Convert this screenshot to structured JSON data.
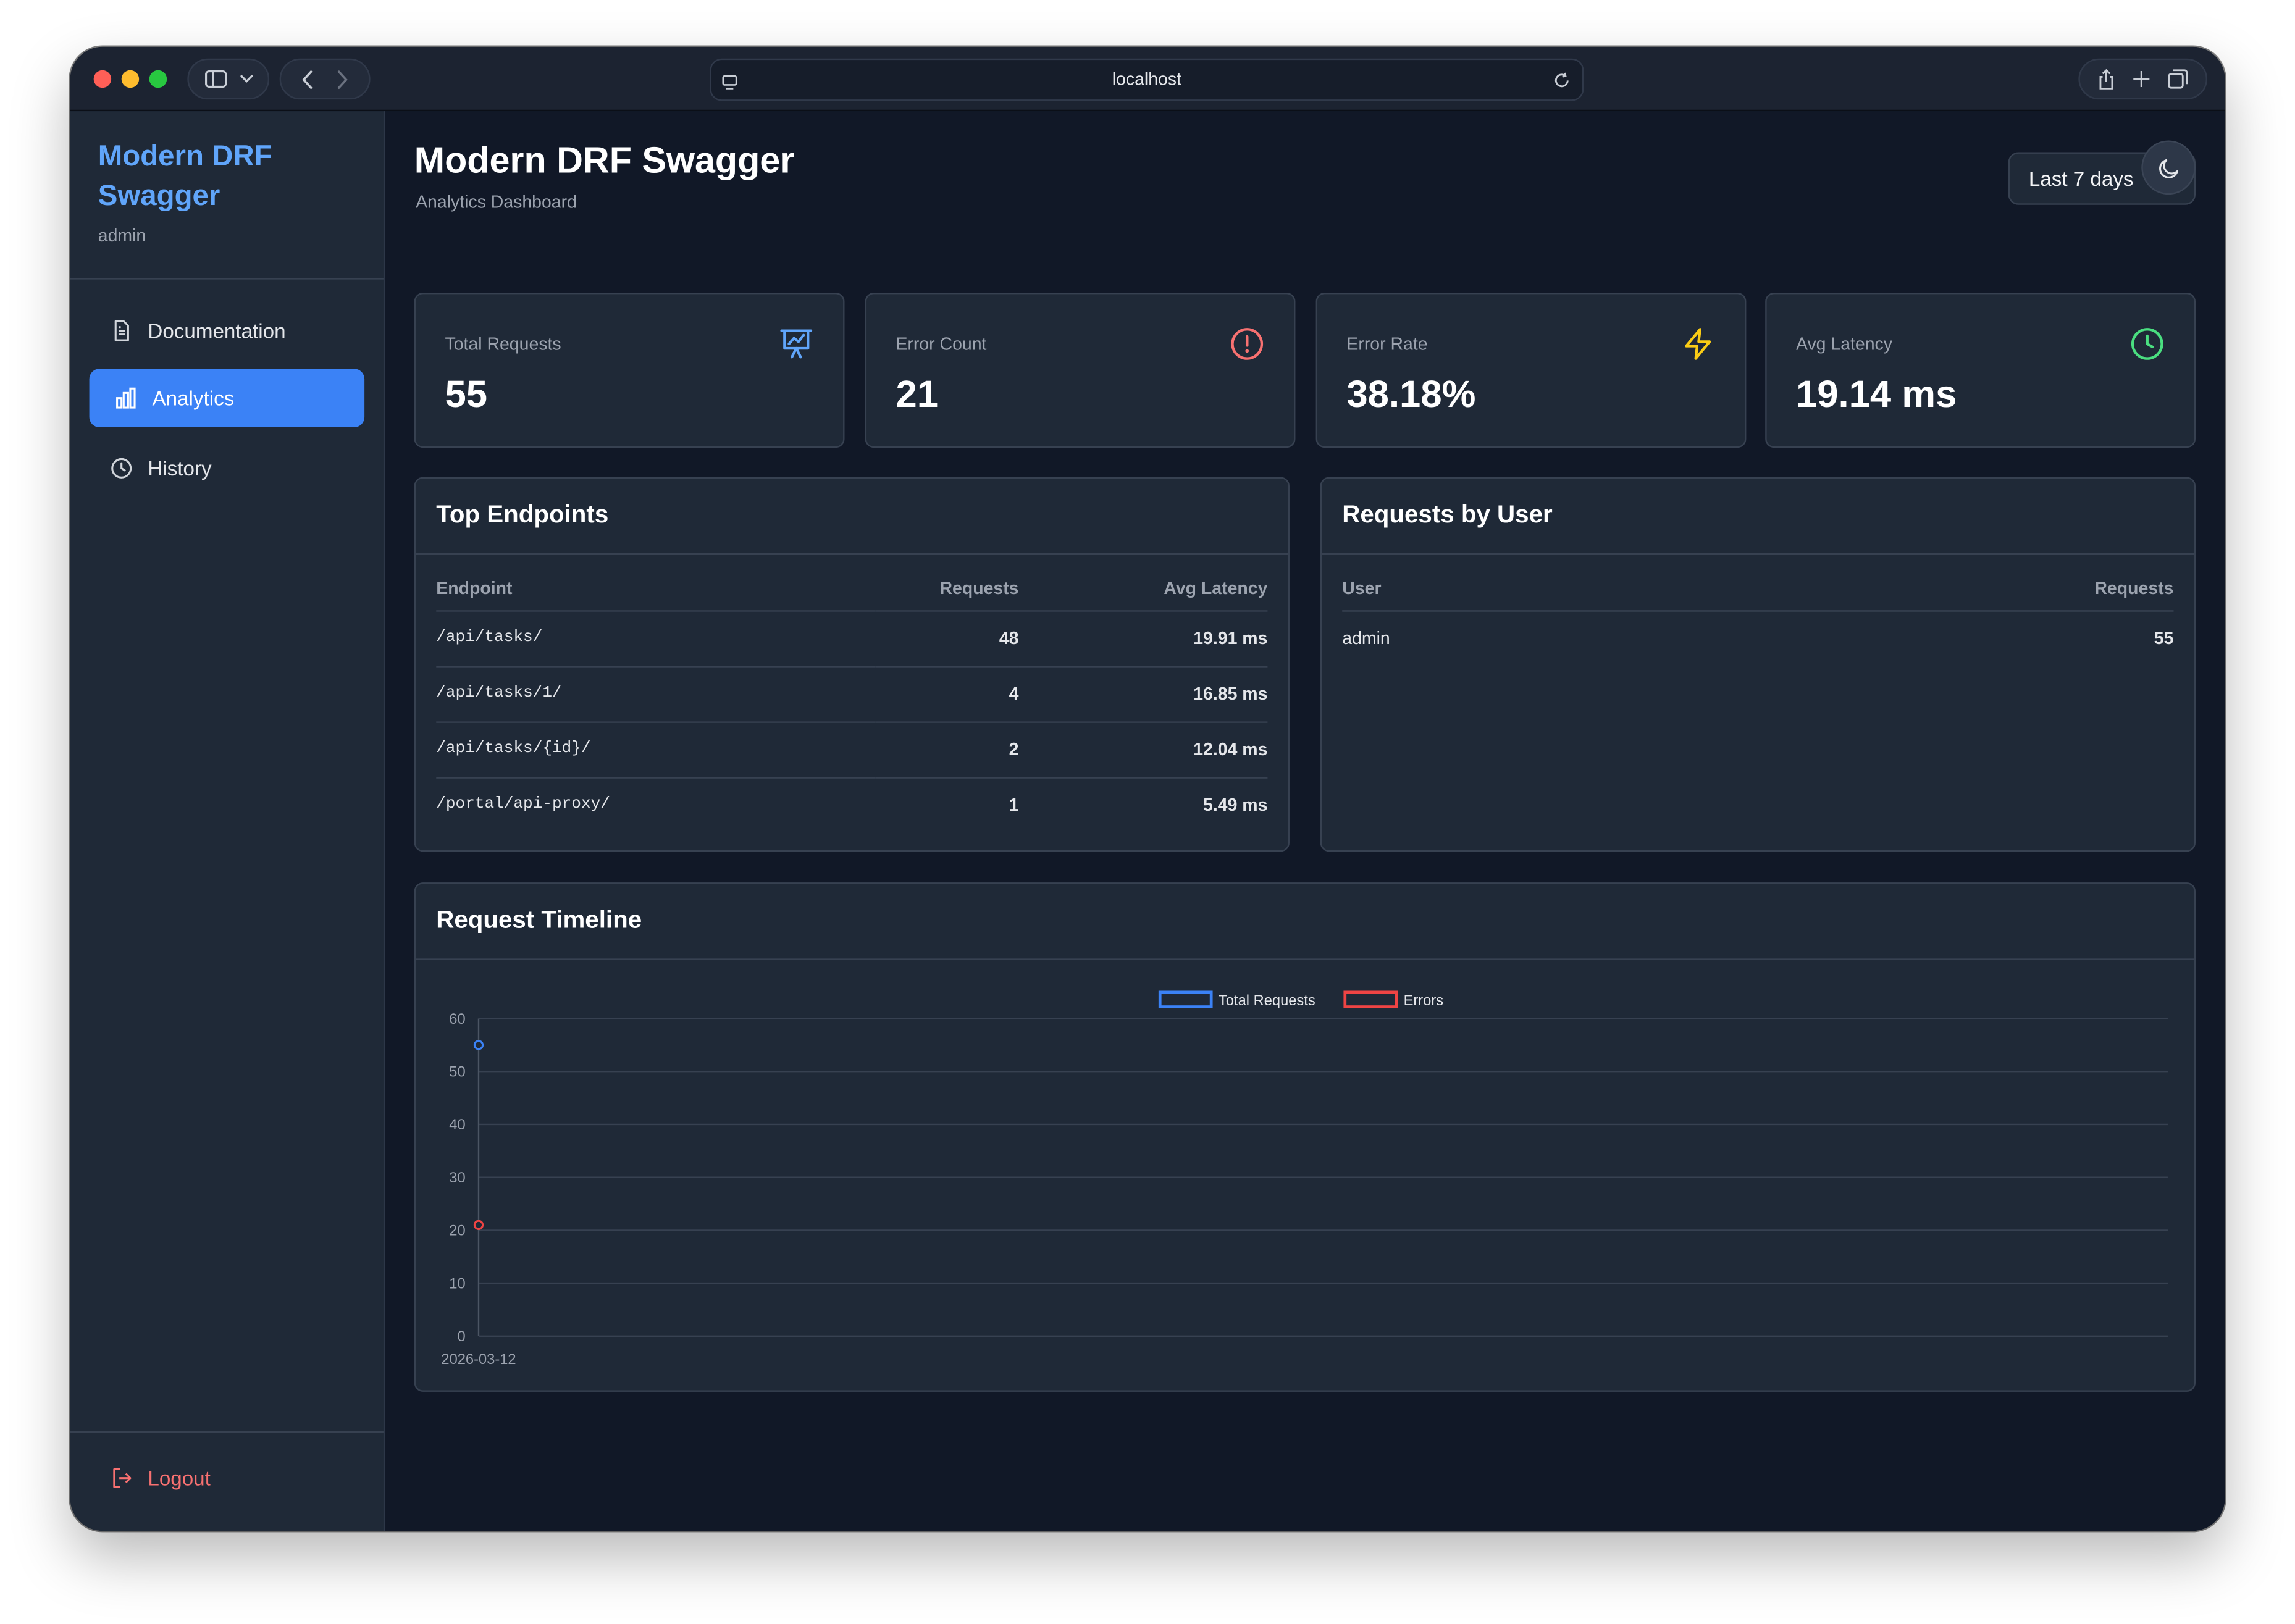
{
  "browser": {
    "url": "localhost"
  },
  "sidebar": {
    "brand": "Modern DRF Swagger",
    "user": "admin",
    "items": [
      {
        "label": "Documentation",
        "icon": "document-icon",
        "active": false
      },
      {
        "label": "Analytics",
        "icon": "bar-chart-icon",
        "active": true
      },
      {
        "label": "History",
        "icon": "clock-icon",
        "active": false
      }
    ],
    "logout_label": "Logout"
  },
  "header": {
    "title": "Modern DRF Swagger",
    "subtitle": "Analytics Dashboard",
    "range_label": "Last 7 days"
  },
  "stats": [
    {
      "label": "Total Requests",
      "value": "55",
      "icon": "presentation-chart-icon",
      "color": "#60a5fa"
    },
    {
      "label": "Error Count",
      "value": "21",
      "icon": "alert-circle-icon",
      "color": "#f87171"
    },
    {
      "label": "Error Rate",
      "value": "38.18%",
      "icon": "lightning-icon",
      "color": "#facc15"
    },
    {
      "label": "Avg Latency",
      "value": "19.14 ms",
      "icon": "clock-icon",
      "color": "#4ade80"
    }
  ],
  "top_endpoints": {
    "title": "Top Endpoints",
    "columns": [
      "Endpoint",
      "Requests",
      "Avg Latency"
    ],
    "rows": [
      {
        "endpoint": "/api/tasks/",
        "requests": "48",
        "latency": "19.91 ms"
      },
      {
        "endpoint": "/api/tasks/1/",
        "requests": "4",
        "latency": "16.85 ms"
      },
      {
        "endpoint": "/api/tasks/{id}/",
        "requests": "2",
        "latency": "12.04 ms"
      },
      {
        "endpoint": "/portal/api-proxy/",
        "requests": "1",
        "latency": "5.49 ms"
      }
    ]
  },
  "requests_by_user": {
    "title": "Requests by User",
    "columns": [
      "User",
      "Requests"
    ],
    "rows": [
      {
        "user": "admin",
        "requests": "55"
      }
    ]
  },
  "timeline": {
    "title": "Request Timeline"
  },
  "chart_data": {
    "type": "line",
    "title": "",
    "xlabel": "",
    "ylabel": "",
    "x": [
      "2026-03-12"
    ],
    "series": [
      {
        "name": "Total Requests",
        "values": [
          55
        ],
        "color": "#3b82f6"
      },
      {
        "name": "Errors",
        "values": [
          21
        ],
        "color": "#ef4444"
      }
    ],
    "ylim": [
      0,
      60
    ],
    "yticks": [
      0,
      10,
      20,
      30,
      40,
      50,
      60
    ],
    "grid": true,
    "legend": "top-center"
  }
}
